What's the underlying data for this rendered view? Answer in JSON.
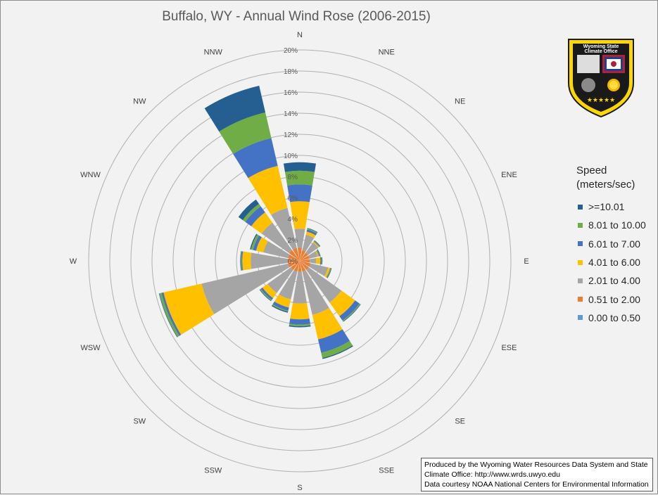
{
  "chart_data": {
    "type": "polar-stacked-bar",
    "title": "Buffalo, WY - Annual Wind Rose (2006-2015)",
    "directions": [
      "N",
      "NNE",
      "NE",
      "ENE",
      "E",
      "ESE",
      "SE",
      "SSE",
      "S",
      "SSW",
      "SW",
      "WSW",
      "W",
      "WNW",
      "NW",
      "NNW"
    ],
    "radial_ticks": [
      "0%",
      "2%",
      "4%",
      "6%",
      "8%",
      "10%",
      "12%",
      "14%",
      "16%",
      "18%",
      "20%"
    ],
    "radial_max": 20,
    "legend_title": "Speed\n(meters/sec)",
    "legend_position": "right",
    "series": [
      {
        "name": "0.00 to 0.50",
        "color": "#5b9bd5",
        "values": [
          0.05,
          0.05,
          0.05,
          0.05,
          0.05,
          0.05,
          0.05,
          0.05,
          0.05,
          0.05,
          0.05,
          0.05,
          0.05,
          0.05,
          0.05,
          0.05
        ]
      },
      {
        "name": "0.51 to 2.00",
        "color": "#ed7d31",
        "values": [
          1.2,
          1.0,
          0.9,
          0.9,
          0.9,
          1.0,
          1.0,
          1.0,
          1.0,
          1.0,
          1.0,
          1.1,
          1.1,
          1.1,
          1.2,
          1.2
        ]
      },
      {
        "name": "2.01 to 4.00",
        "color": "#a5a5a5",
        "values": [
          1.8,
          1.5,
          1.2,
          0.8,
          0.6,
          1.7,
          3.8,
          4.2,
          3.0,
          2.7,
          2.7,
          8.4,
          3.5,
          2.4,
          3.2,
          3.9
        ]
      },
      {
        "name": "4.01 to 6.00",
        "color": "#ffc000",
        "values": [
          2.6,
          0.3,
          0.1,
          0.1,
          0.4,
          0.2,
          1.6,
          2.4,
          1.5,
          0.8,
          0.6,
          3.7,
          0.8,
          0.7,
          1.2,
          4.1
        ]
      },
      {
        "name": "6.01 to 7.00",
        "color": "#4472c4",
        "values": [
          1.6,
          0.2,
          0.05,
          0.05,
          0.1,
          0.05,
          0.5,
          1.3,
          0.5,
          0.3,
          0.2,
          0.2,
          0.1,
          0.3,
          0.7,
          2.7
        ]
      },
      {
        "name": "8.01 to 10.00",
        "color": "#70ad47",
        "values": [
          1.3,
          0.1,
          0.05,
          0.05,
          0.05,
          0.05,
          0.1,
          0.5,
          0.15,
          0.1,
          0.1,
          0.2,
          0.05,
          0.2,
          0.3,
          2.5
        ]
      },
      {
        "name": ">=10.01",
        "color": "#255e91",
        "values": [
          0.8,
          0.05,
          0.05,
          0.05,
          0.05,
          0.05,
          0.05,
          0.1,
          0.1,
          0.1,
          0.05,
          0.05,
          0.05,
          0.1,
          0.5,
          2.6
        ]
      }
    ]
  },
  "credit": {
    "line1": "Produced by the Wyoming Water Resources Data System and State",
    "line2": "Climate Office: http://www.wrds.uwyo.edu",
    "line3": "Data courtesy NOAA National Centers for Environmental Information"
  },
  "logo": {
    "text_line1": "Wyoming State",
    "text_line2": "Climate Office"
  }
}
